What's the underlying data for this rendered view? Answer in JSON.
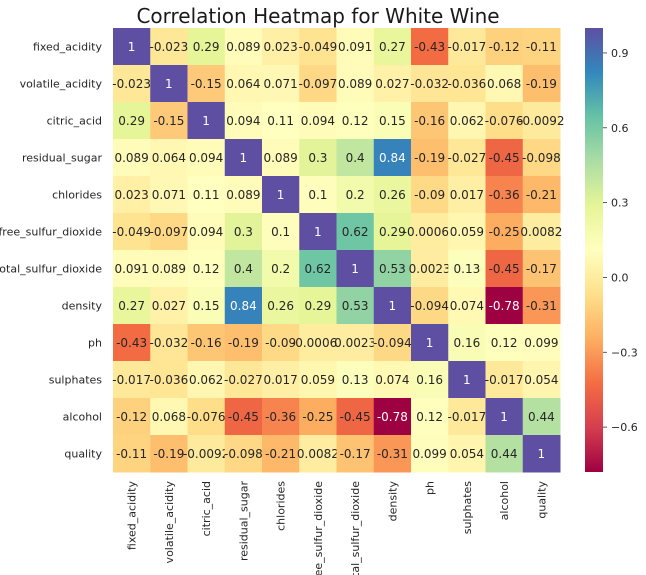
{
  "chart_data": {
    "type": "heatmap",
    "title": "Correlation Heatmap for White Wine",
    "xlabel": "",
    "ylabel": "",
    "categories": [
      "fixed_acidity",
      "volatile_acidity",
      "citric_acid",
      "residual_sugar",
      "chlorides",
      "free_sulfur_dioxide",
      "total_sulfur_dioxide",
      "density",
      "ph",
      "sulphates",
      "alcohol",
      "quality"
    ],
    "labels": [
      [
        "1",
        "-0.023",
        "0.29",
        "0.089",
        "0.023",
        "-0.049",
        "0.091",
        "0.27",
        "-0.43",
        "-0.017",
        "-0.12",
        "-0.11"
      ],
      [
        "-0.023",
        "1",
        "-0.15",
        "0.064",
        "0.071",
        "-0.097",
        "0.089",
        "0.027",
        "-0.032",
        "-0.036",
        "0.068",
        "-0.19"
      ],
      [
        "0.29",
        "-0.15",
        "1",
        "0.094",
        "0.11",
        "0.094",
        "0.12",
        "0.15",
        "-0.16",
        "0.062",
        "-0.076",
        "-0.0092"
      ],
      [
        "0.089",
        "0.064",
        "0.094",
        "1",
        "0.089",
        "0.3",
        "0.4",
        "0.84",
        "-0.19",
        "-0.027",
        "-0.45",
        "-0.098"
      ],
      [
        "0.023",
        "0.071",
        "0.11",
        "0.089",
        "1",
        "0.1",
        "0.2",
        "0.26",
        "-0.09",
        "0.017",
        "-0.36",
        "-0.21"
      ],
      [
        "-0.049",
        "-0.097",
        "0.094",
        "0.3",
        "0.1",
        "1",
        "0.62",
        "0.29",
        "-0.00062",
        "0.059",
        "-0.25",
        "0.0082"
      ],
      [
        "0.091",
        "0.089",
        "0.12",
        "0.4",
        "0.2",
        "0.62",
        "1",
        "0.53",
        "0.0023",
        "0.13",
        "-0.45",
        "-0.17"
      ],
      [
        "0.27",
        "0.027",
        "0.15",
        "0.84",
        "0.26",
        "0.29",
        "0.53",
        "1",
        "-0.094",
        "0.074",
        "-0.78",
        "-0.31"
      ],
      [
        "-0.43",
        "-0.032",
        "-0.16",
        "-0.19",
        "-0.09",
        "-0.00062",
        "0.0023",
        "-0.094",
        "1",
        "0.16",
        "0.12",
        "0.099"
      ],
      [
        "-0.017",
        "-0.036",
        "0.062",
        "-0.027",
        "0.017",
        "0.059",
        "0.13",
        "0.074",
        "0.16",
        "1",
        "-0.017",
        "0.054"
      ],
      [
        "-0.12",
        "0.068",
        "-0.076",
        "-0.45",
        "-0.36",
        "-0.25",
        "-0.45",
        "-0.78",
        "0.12",
        "-0.017",
        "1",
        "0.44"
      ],
      [
        "-0.11",
        "-0.19",
        "-0.0092",
        "-0.098",
        "-0.21",
        "0.0082",
        "-0.17",
        "-0.31",
        "0.099",
        "0.054",
        "0.44",
        "1"
      ]
    ],
    "colorbar": {
      "colormap": "Spectral",
      "vmin": -0.78,
      "vmax": 1,
      "ticks": [
        -0.6,
        -0.3,
        0.0,
        0.3,
        0.6,
        0.9
      ],
      "tick_labels": [
        "−0.6",
        "−0.3",
        "0.0",
        "0.3",
        "0.6",
        "0.9"
      ]
    },
    "grid": false,
    "legend": "colorbar-right"
  }
}
